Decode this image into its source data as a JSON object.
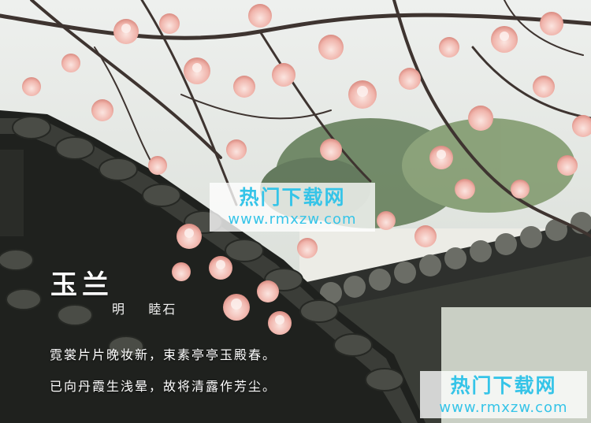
{
  "poem": {
    "title": "玉兰",
    "author": "明    睦石",
    "lines": [
      "霓裳片片晚妆新，束素亭亭玉殿春。",
      "已向丹霞生浅晕，故将清露作芳尘。"
    ]
  },
  "watermark": {
    "site_name": "热门下载网",
    "url": "www.rmxzw.com",
    "color": "#35c4e8"
  },
  "photo": {
    "subject": "magnolia-blossoms-over-tiled-roof"
  }
}
